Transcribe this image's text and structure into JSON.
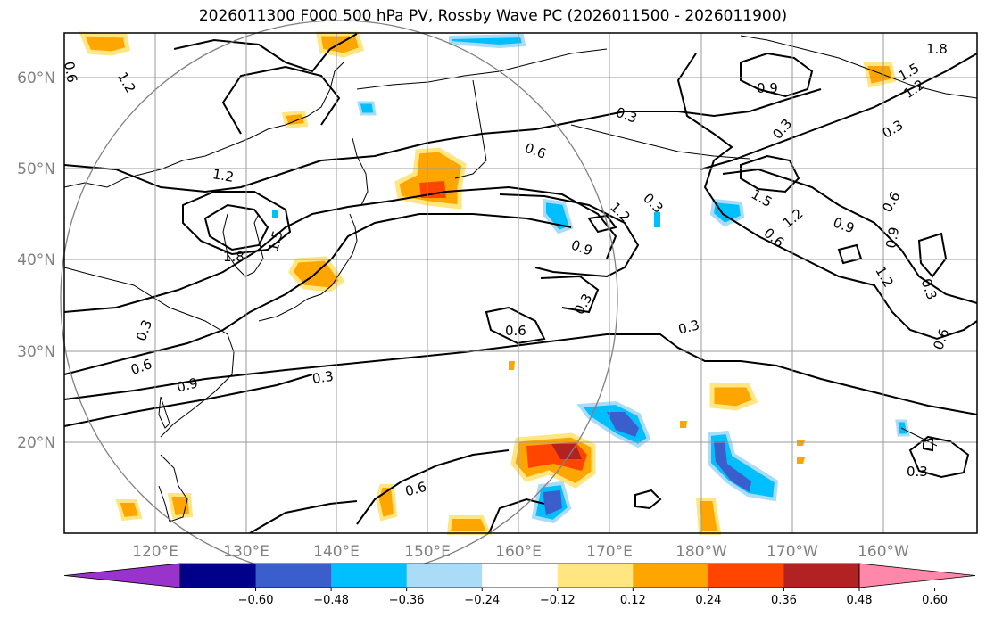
{
  "title": "2026011300 F000 500 hPa PV, Rossby Wave PC (2026011500 - 2026011900)",
  "map": {
    "lat_labels": [
      "20°N",
      "30°N",
      "40°N",
      "50°N",
      "60°N"
    ],
    "lon_labels": [
      "120°E",
      "130°E",
      "140°E",
      "150°E",
      "160°E",
      "170°E",
      "180°W",
      "170°W",
      "160°W"
    ],
    "contour_labels": [
      "1.2",
      "0.6",
      "1.2",
      "1.5",
      "1.8",
      "0.3",
      "0.6",
      "0.9",
      "0.3",
      "0.6",
      "0.9",
      "1.2",
      "0.3",
      "0.6",
      "0.3",
      "0.3",
      "0.3",
      "0.9",
      "1.5",
      "1.2",
      "0.6",
      "0.9",
      "0.6",
      "0.9",
      "0.3",
      "1.2",
      "0.3",
      "1.8",
      "1.5",
      "1.2",
      "0.3",
      "0.6",
      "0.3",
      "0.6"
    ],
    "reference_circle": true,
    "grid": true
  },
  "colorbar": {
    "ticks": [
      "−0.60",
      "−0.48",
      "−0.36",
      "−0.24",
      "−0.12",
      "0.12",
      "0.24",
      "0.36",
      "0.48",
      "0.60"
    ],
    "colors": [
      "#9933cc",
      "#00008b",
      "#3a5fcd",
      "#00bfff",
      "#aadcf8",
      "#ffffff",
      "#ffe680",
      "#ffa500",
      "#ff4500",
      "#b22222",
      "#ff88aa"
    ]
  }
}
